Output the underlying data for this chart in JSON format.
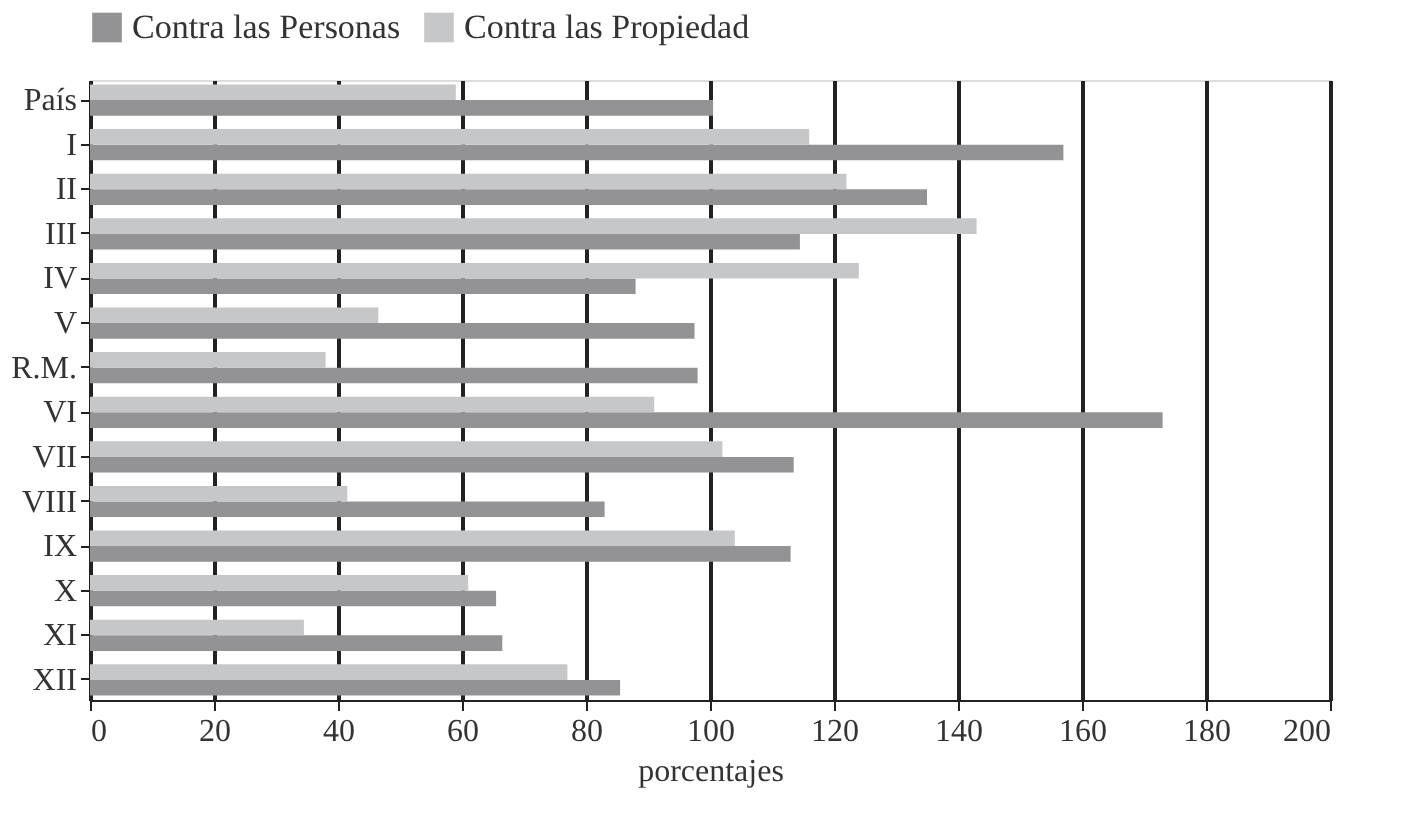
{
  "chart_data": {
    "type": "bar",
    "orientation": "horizontal",
    "xlabel": "porcentajes",
    "categories": [
      "País",
      "I",
      "II",
      "III",
      "IV",
      "V",
      "R.M.",
      "VI",
      "VII",
      "VIII",
      "IX",
      "X",
      "XI",
      "XII"
    ],
    "series": [
      {
        "name": "Contra las Personas",
        "color": "#939396",
        "values": [
          100.5,
          157,
          135,
          114.5,
          88,
          97.5,
          98,
          173,
          113.5,
          83,
          113,
          65.5,
          66.5,
          85.5
        ]
      },
      {
        "name": "Contra las Propiedad",
        "color": "#c6c7c9",
        "values": [
          59,
          116,
          122,
          143,
          124,
          46.5,
          38,
          91,
          102,
          41.5,
          104,
          61,
          34.5,
          77
        ]
      }
    ],
    "xlim": [
      0,
      200
    ],
    "xticks": [
      0,
      20,
      40,
      60,
      80,
      100,
      120,
      140,
      160,
      180,
      200
    ],
    "grid": "x",
    "legend": "top"
  }
}
